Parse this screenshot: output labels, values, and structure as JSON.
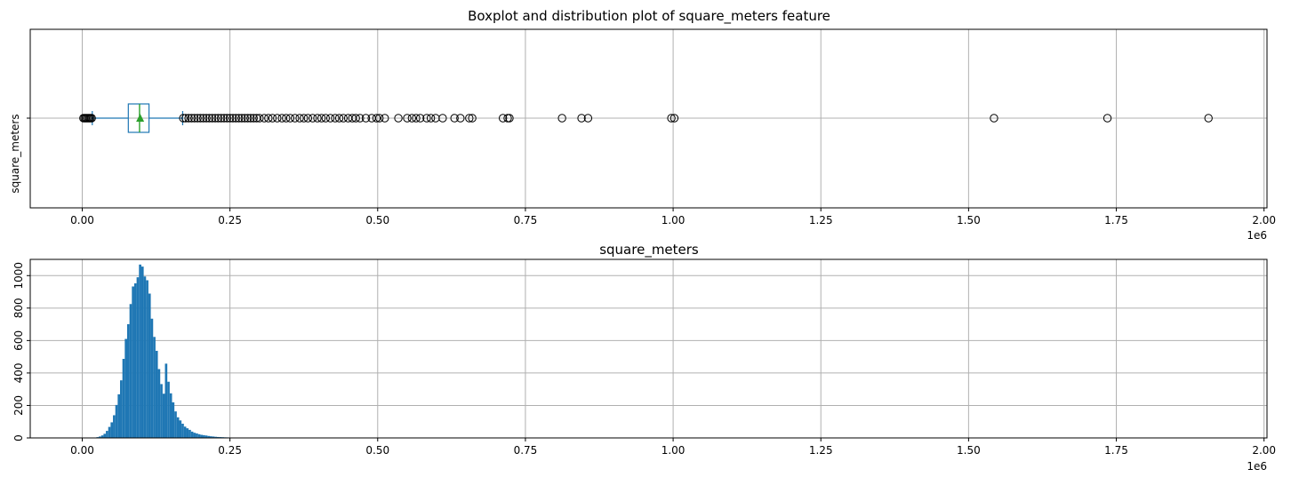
{
  "chart_data": [
    {
      "type": "box",
      "title": "Boxplot and distribution plot of square_meters feature",
      "ylabel": "square_meters",
      "xlabel": "",
      "x_offset_text": "1e6",
      "xlim": [
        -88000,
        2005000
      ],
      "x_ticks": [
        0,
        0.25,
        0.5,
        0.75,
        1.0,
        1.25,
        1.5,
        1.75,
        2.0
      ],
      "x_tick_labels": [
        "0.00",
        "0.25",
        "0.50",
        "0.75",
        "1.00",
        "1.25",
        "1.50",
        "1.75",
        "2.00"
      ],
      "grid": true,
      "series": [
        {
          "q1": 78000,
          "median": 97000,
          "q3": 113000,
          "whisker_low": 17000,
          "whisker_high": 170000,
          "mean": 98000,
          "outliers": [
            2000,
            4000,
            6000,
            8000,
            10000,
            12000,
            14000,
            16000,
            171000,
            175000,
            180000,
            185000,
            190000,
            195000,
            200000,
            205000,
            210000,
            215000,
            220000,
            225000,
            230000,
            235000,
            240000,
            245000,
            250000,
            255000,
            260000,
            265000,
            270000,
            275000,
            280000,
            285000,
            290000,
            295000,
            300000,
            308000,
            315000,
            322000,
            330000,
            338000,
            345000,
            352000,
            360000,
            368000,
            375000,
            382000,
            390000,
            398000,
            405000,
            412000,
            420000,
            428000,
            435000,
            442000,
            450000,
            457000,
            463000,
            470000,
            480000,
            490000,
            498000,
            503000,
            512000,
            535000,
            550000,
            558000,
            565000,
            572000,
            583000,
            590000,
            598000,
            610000,
            630000,
            640000,
            655000,
            660000,
            712000,
            720000,
            723000,
            812000,
            845000,
            856000,
            997000,
            1002000,
            1543000,
            1735000,
            1906000
          ]
        }
      ]
    },
    {
      "type": "histogram",
      "title": "square_meters",
      "xlabel": "",
      "ylabel": "",
      "x_offset_text": "1e6",
      "xlim": [
        -88000,
        2005000
      ],
      "ylim": [
        0,
        1100
      ],
      "x_ticks": [
        0,
        0.25,
        0.5,
        0.75,
        1.0,
        1.25,
        1.5,
        1.75,
        2.0
      ],
      "x_tick_labels": [
        "0.00",
        "0.25",
        "0.50",
        "0.75",
        "1.00",
        "1.25",
        "1.50",
        "1.75",
        "2.00"
      ],
      "y_ticks": [
        0,
        200,
        400,
        600,
        800,
        1000
      ],
      "y_tick_labels": [
        "0",
        "200",
        "400",
        "600",
        "800",
        "1000"
      ],
      "grid": true,
      "color": "#1f77b4",
      "bin_width": 4000,
      "mode": 98000,
      "peak_count": 1060,
      "sigma_left": 22000,
      "sigma_right": 24000
    }
  ]
}
